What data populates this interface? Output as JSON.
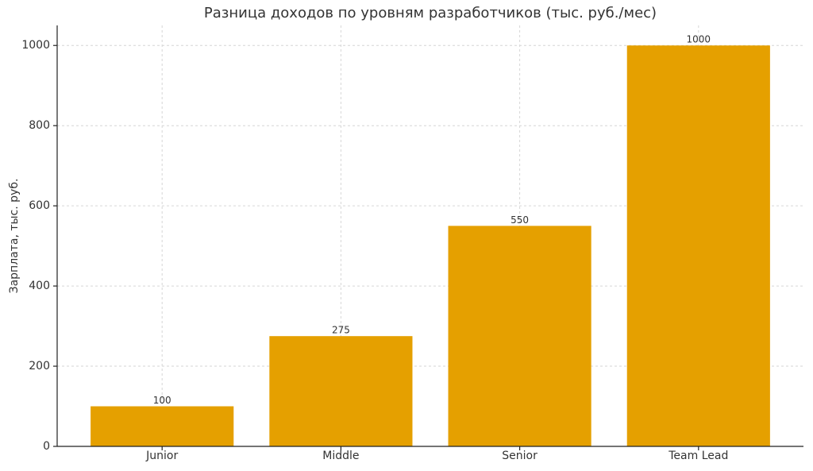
{
  "chart_data": {
    "type": "bar",
    "title": "Разница доходов по уровням разработчиков (тыс. руб./мес)",
    "y_label": "Зарплата, тыс. руб.",
    "categories": [
      "Junior",
      "Middle",
      "Senior",
      "Team Lead"
    ],
    "values": [
      100,
      275,
      550,
      1000
    ],
    "color": "#e5a000",
    "ylim": [
      0,
      1050
    ],
    "yticks": [
      0,
      200,
      400,
      600,
      800,
      1000
    ],
    "grid": true
  }
}
